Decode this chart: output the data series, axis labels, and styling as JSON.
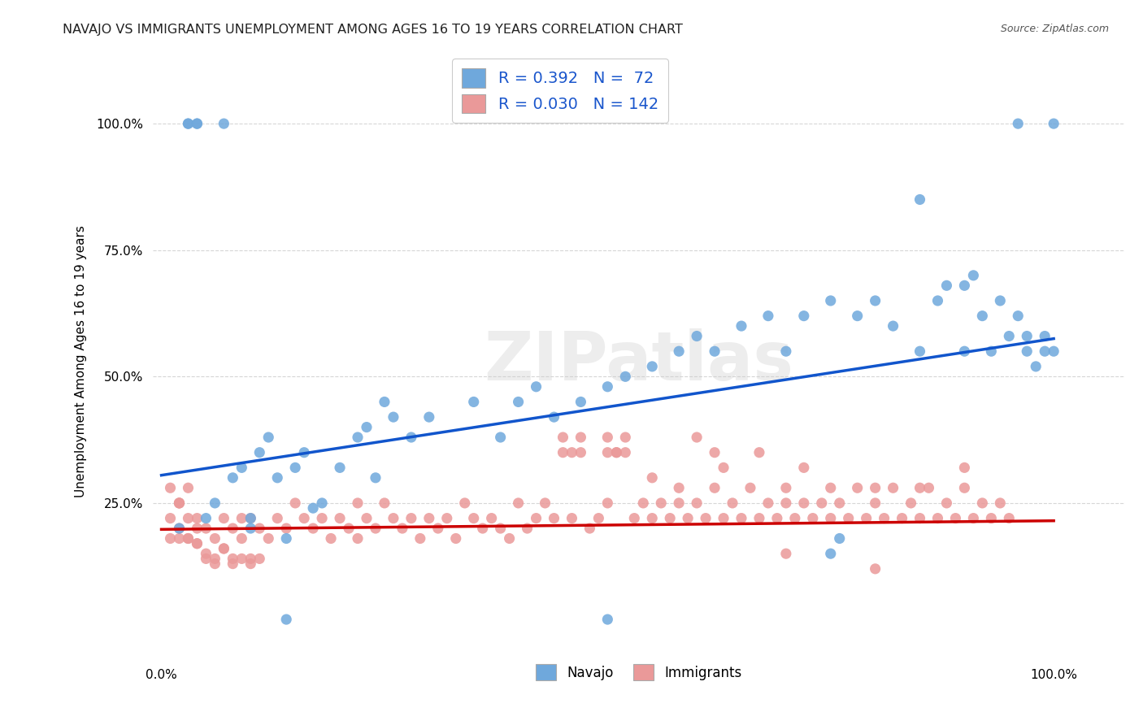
{
  "title": "NAVAJO VS IMMIGRANTS UNEMPLOYMENT AMONG AGES 16 TO 19 YEARS CORRELATION CHART",
  "source": "Source: ZipAtlas.com",
  "ylabel": "Unemployment Among Ages 16 to 19 years",
  "navajo_R": "0.392",
  "navajo_N": "72",
  "immigrants_R": "0.030",
  "immigrants_N": "142",
  "navajo_color": "#6fa8dc",
  "immigrants_color": "#ea9999",
  "navajo_line_color": "#1155cc",
  "immigrants_line_color": "#cc0000",
  "background_color": "#ffffff",
  "legend_navajo": "Navajo",
  "legend_immigrants": "Immigrants",
  "navajo_x": [
    0.02,
    0.03,
    0.03,
    0.04,
    0.04,
    0.05,
    0.06,
    0.07,
    0.08,
    0.09,
    0.1,
    0.1,
    0.11,
    0.12,
    0.13,
    0.14,
    0.15,
    0.16,
    0.17,
    0.18,
    0.2,
    0.22,
    0.23,
    0.24,
    0.25,
    0.26,
    0.28,
    0.3,
    0.35,
    0.38,
    0.4,
    0.42,
    0.44,
    0.47,
    0.5,
    0.52,
    0.55,
    0.58,
    0.6,
    0.62,
    0.65,
    0.68,
    0.7,
    0.72,
    0.75,
    0.78,
    0.8,
    0.82,
    0.85,
    0.87,
    0.88,
    0.9,
    0.91,
    0.92,
    0.93,
    0.94,
    0.95,
    0.96,
    0.97,
    0.97,
    0.98,
    0.99,
    0.99,
    1.0,
    1.0,
    0.85,
    0.9,
    0.14,
    0.5,
    0.75,
    0.76,
    0.96
  ],
  "navajo_y": [
    0.2,
    1.0,
    1.0,
    1.0,
    1.0,
    0.22,
    0.25,
    1.0,
    0.3,
    0.32,
    0.2,
    0.22,
    0.35,
    0.38,
    0.3,
    0.18,
    0.32,
    0.35,
    0.24,
    0.25,
    0.32,
    0.38,
    0.4,
    0.3,
    0.45,
    0.42,
    0.38,
    0.42,
    0.45,
    0.38,
    0.45,
    0.48,
    0.42,
    0.45,
    0.02,
    0.5,
    0.52,
    0.55,
    0.58,
    0.55,
    0.6,
    0.62,
    0.55,
    0.62,
    0.65,
    0.62,
    0.65,
    0.6,
    0.55,
    0.65,
    0.68,
    0.68,
    0.7,
    0.62,
    0.55,
    0.65,
    0.58,
    0.62,
    0.55,
    0.58,
    0.52,
    0.55,
    0.58,
    0.55,
    1.0,
    0.85,
    0.55,
    0.02,
    0.48,
    0.15,
    0.18,
    1.0
  ],
  "immigrants_x": [
    0.01,
    0.01,
    0.02,
    0.02,
    0.02,
    0.03,
    0.03,
    0.04,
    0.04,
    0.05,
    0.05,
    0.06,
    0.06,
    0.07,
    0.07,
    0.08,
    0.08,
    0.09,
    0.09,
    0.1,
    0.1,
    0.11,
    0.12,
    0.13,
    0.14,
    0.15,
    0.16,
    0.17,
    0.18,
    0.19,
    0.2,
    0.21,
    0.22,
    0.23,
    0.24,
    0.25,
    0.26,
    0.27,
    0.28,
    0.29,
    0.3,
    0.31,
    0.32,
    0.33,
    0.34,
    0.35,
    0.36,
    0.37,
    0.38,
    0.39,
    0.4,
    0.41,
    0.42,
    0.43,
    0.44,
    0.45,
    0.46,
    0.47,
    0.48,
    0.49,
    0.5,
    0.51,
    0.52,
    0.53,
    0.54,
    0.55,
    0.56,
    0.57,
    0.58,
    0.59,
    0.6,
    0.61,
    0.62,
    0.63,
    0.64,
    0.65,
    0.66,
    0.67,
    0.68,
    0.69,
    0.7,
    0.71,
    0.72,
    0.73,
    0.74,
    0.75,
    0.76,
    0.77,
    0.78,
    0.79,
    0.8,
    0.81,
    0.82,
    0.83,
    0.84,
    0.85,
    0.86,
    0.87,
    0.88,
    0.89,
    0.9,
    0.91,
    0.92,
    0.93,
    0.94,
    0.95,
    0.5,
    0.51,
    0.52,
    0.45,
    0.46,
    0.47,
    0.05,
    0.06,
    0.07,
    0.08,
    0.09,
    0.1,
    0.11,
    0.03,
    0.04,
    0.02,
    0.22,
    0.5,
    0.55,
    0.6,
    0.62,
    0.63,
    0.58,
    0.7,
    0.72,
    0.75,
    0.8,
    0.85,
    0.9,
    0.7,
    0.8,
    0.01,
    0.02,
    0.03,
    0.04,
    0.67
  ],
  "immigrants_y": [
    0.22,
    0.18,
    0.2,
    0.25,
    0.18,
    0.22,
    0.18,
    0.22,
    0.17,
    0.14,
    0.2,
    0.13,
    0.18,
    0.22,
    0.16,
    0.2,
    0.14,
    0.18,
    0.22,
    0.14,
    0.22,
    0.2,
    0.18,
    0.22,
    0.2,
    0.25,
    0.22,
    0.2,
    0.22,
    0.18,
    0.22,
    0.2,
    0.18,
    0.22,
    0.2,
    0.25,
    0.22,
    0.2,
    0.22,
    0.18,
    0.22,
    0.2,
    0.22,
    0.18,
    0.25,
    0.22,
    0.2,
    0.22,
    0.2,
    0.18,
    0.25,
    0.2,
    0.22,
    0.25,
    0.22,
    0.35,
    0.22,
    0.35,
    0.2,
    0.22,
    0.25,
    0.35,
    0.38,
    0.22,
    0.25,
    0.22,
    0.25,
    0.22,
    0.25,
    0.22,
    0.25,
    0.22,
    0.28,
    0.22,
    0.25,
    0.22,
    0.28,
    0.22,
    0.25,
    0.22,
    0.25,
    0.22,
    0.25,
    0.22,
    0.25,
    0.22,
    0.25,
    0.22,
    0.28,
    0.22,
    0.25,
    0.22,
    0.28,
    0.22,
    0.25,
    0.22,
    0.28,
    0.22,
    0.25,
    0.22,
    0.28,
    0.22,
    0.25,
    0.22,
    0.25,
    0.22,
    0.38,
    0.35,
    0.35,
    0.38,
    0.35,
    0.38,
    0.15,
    0.14,
    0.16,
    0.13,
    0.14,
    0.13,
    0.14,
    0.18,
    0.17,
    0.25,
    0.25,
    0.35,
    0.3,
    0.38,
    0.35,
    0.32,
    0.28,
    0.28,
    0.32,
    0.28,
    0.28,
    0.28,
    0.32,
    0.15,
    0.12,
    0.28,
    0.25,
    0.28,
    0.2,
    0.35
  ],
  "navajo_line_x0": 0.0,
  "navajo_line_y0": 0.305,
  "navajo_line_x1": 1.0,
  "navajo_line_y1": 0.575,
  "immigrants_line_x0": 0.0,
  "immigrants_line_y0": 0.198,
  "immigrants_line_x1": 1.0,
  "immigrants_line_y1": 0.215,
  "xlim": [
    -0.01,
    1.08
  ],
  "ylim": [
    -0.06,
    1.12
  ],
  "yticks": [
    0.25,
    0.5,
    0.75,
    1.0
  ],
  "ytick_labels": [
    "25.0%",
    "50.0%",
    "75.0%",
    "100.0%"
  ],
  "xticks": [
    0.0,
    1.0
  ],
  "xtick_labels": [
    "0.0%",
    "100.0%"
  ]
}
